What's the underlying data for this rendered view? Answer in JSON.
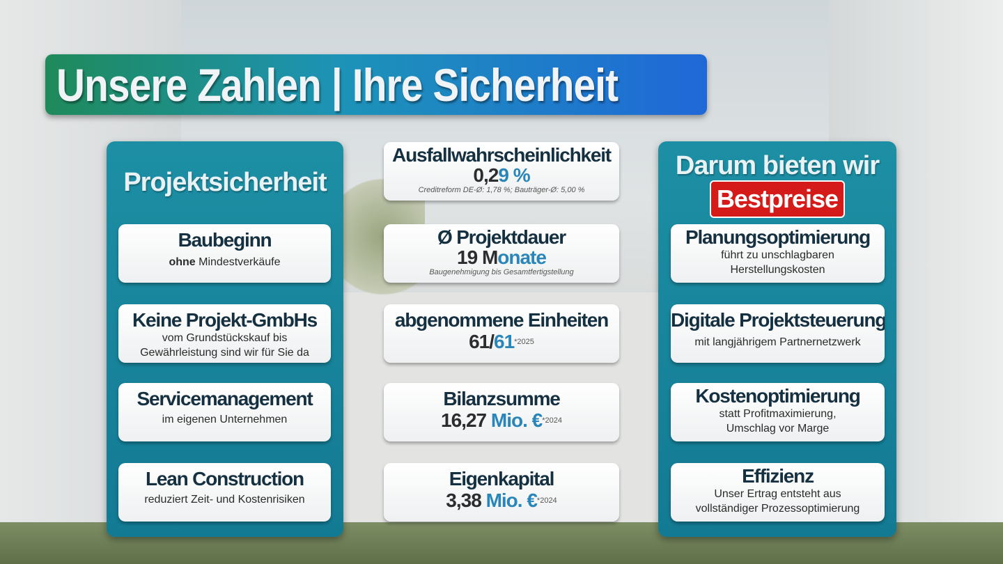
{
  "title": "Unsere Zahlen | Ihre Sicherheit",
  "left": {
    "title": "Projektsicherheit",
    "items": [
      {
        "heading": "Baubeginn",
        "bold": "ohne",
        "text": " Mindestverkäufe"
      },
      {
        "heading": "Keine Projekt-GmbHs",
        "text": "vom Grundstückskauf bis Gewährleistung sind wir für Sie da"
      },
      {
        "heading": "Servicemanagement",
        "text": "im eigenen Unternehmen"
      },
      {
        "heading": "Lean Construction",
        "text": "reduziert Zeit- und Kostenrisiken"
      }
    ]
  },
  "middle": [
    {
      "heading": "Ausfallwahrscheinlichkeit",
      "value": "0,2",
      "accent": "9 %",
      "note": "Creditreform DE-Ø: 1,78 %; Bauträger-Ø: 5,00 %"
    },
    {
      "heading": "Ø Projektdauer",
      "value": "19 M",
      "accent": "onate",
      "note": "Baugenehmigung bis Gesamtfertigstellung"
    },
    {
      "heading": "abgenommene Einheiten",
      "value": "61/",
      "accent": "61",
      "sup": "*2025"
    },
    {
      "heading": "Bilanzsumme",
      "value": "16,27 ",
      "accent": "Mio. €",
      "sup": "*2024"
    },
    {
      "heading": "Eigenkapital",
      "value": "3,38 ",
      "accent": "Mio. €",
      "sup": "*2024"
    }
  ],
  "right": {
    "title": "Darum bieten wir",
    "badge": "Bestpreise",
    "items": [
      {
        "heading": "Planungsoptimierung",
        "text": "führt zu unschlagbaren Herstellungskosten"
      },
      {
        "heading": "Digitale Projektsteuerung",
        "text": "mit langjährigem Partnernetzwerk"
      },
      {
        "heading": "Kostenoptimierung",
        "text": "statt Profitmaximierung, Umschlag vor Marge"
      },
      {
        "heading": "Effizienz",
        "text": "Unser Ertrag entsteht aus vollständiger Prozessoptimierung"
      }
    ]
  },
  "colors": {
    "accent": "#2a86b8",
    "panel": "#1d8fa4",
    "badge": "#d51a1a"
  }
}
